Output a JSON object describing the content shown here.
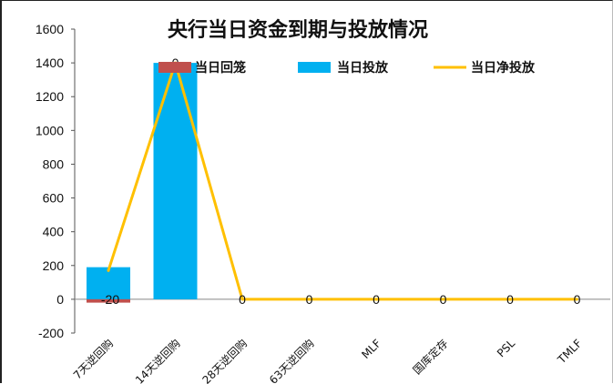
{
  "chart_data": {
    "type": "bar",
    "title": "央行当日资金到期与投放情况",
    "categories": [
      "7天逆回购",
      "14天逆回购",
      "28天逆回购",
      "63天逆回购",
      "MLF",
      "国库定存",
      "PSL",
      "TMLF"
    ],
    "ylim": [
      -200,
      1600
    ],
    "yticks": [
      -200,
      0,
      200,
      400,
      600,
      800,
      1000,
      1200,
      1400,
      1600
    ],
    "grid": false,
    "legend_position": "top",
    "series": [
      {
        "name": "当日回笼",
        "type": "bar",
        "color": "#c0504d",
        "values": [
          20,
          0,
          0,
          0,
          0,
          0,
          0,
          0
        ]
      },
      {
        "name": "当日投放",
        "type": "bar",
        "color": "#00b0f0",
        "values": [
          190,
          1400,
          0,
          0,
          0,
          0,
          0,
          0
        ]
      },
      {
        "name": "当日净投放",
        "type": "line",
        "color": "#ffc000",
        "values": [
          170,
          1400,
          0,
          0,
          0,
          0,
          0,
          0
        ]
      }
    ],
    "data_labels": [
      "-20",
      "0",
      "0",
      "0",
      "0",
      "0",
      "0",
      "0"
    ]
  }
}
